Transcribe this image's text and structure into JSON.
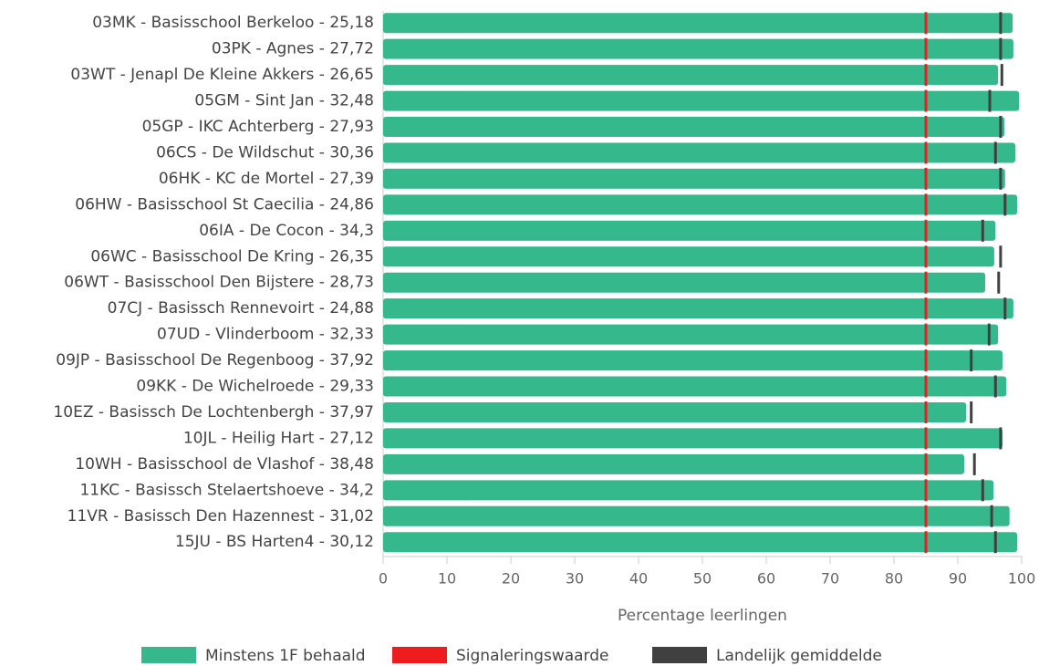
{
  "chart_data": {
    "type": "bar",
    "orientation": "horizontal",
    "x_label": "Percentage leerlingen",
    "categories": [
      "03MK - Basisschool Berkeloo - 25,18",
      "03PK - Agnes - 27,72",
      "03WT - Jenapl De Kleine Akkers - 26,65",
      "05GM - Sint Jan - 32,48",
      "05GP - IKC Achterberg - 27,93",
      "06CS - De Wildschut - 30,36",
      "06HK - KC de Mortel - 27,39",
      "06HW - Basisschool St Caecilia - 24,86",
      "06IA - De Cocon - 34,3",
      "06WC - Basisschool De Kring - 26,35",
      "06WT - Basisschool Den Bijstere - 28,73",
      "07CJ - Basissch Rennevoirt - 24,88",
      "07UD - Vlinderboom - 32,33",
      "09JP - Basisschool De Regenboog - 37,92",
      "09KK - De Wichelroede - 29,33",
      "10EZ - Basissch De Lochtenbergh - 37,97",
      "10JL - Heilig Hart - 27,12",
      "10WH - Basisschool de Vlashof - 38,48",
      "11KC - Basissch Stelaertshoeve - 34,2",
      "11VR - Basissch Den Hazennest - 31,02",
      "15JU - BS Harten4 - 30,12"
    ],
    "series": [
      {
        "name": "Minstens 1F behaald",
        "color": "#35b88c",
        "mark": "bar",
        "values": [
          98.6,
          98.7,
          96.3,
          99.6,
          97.3,
          99.0,
          97.4,
          99.3,
          95.9,
          95.7,
          94.3,
          98.7,
          96.3,
          97.0,
          97.6,
          91.3,
          97.0,
          91.0,
          95.6,
          98.1,
          99.3
        ]
      },
      {
        "name": "Signaleringswaarde",
        "color": "#ee1c1c",
        "mark": "line",
        "values": [
          85,
          85,
          85,
          85,
          85,
          85,
          85,
          85,
          85,
          85,
          85,
          85,
          85,
          85,
          85,
          85,
          85,
          85,
          85,
          85,
          85
        ]
      },
      {
        "name": "Landelijk gemiddelde",
        "color": "#404040",
        "mark": "line",
        "values": [
          96.7,
          96.7,
          96.9,
          95.0,
          96.7,
          95.9,
          96.7,
          97.4,
          93.9,
          96.7,
          96.4,
          97.4,
          94.9,
          92.1,
          95.9,
          92.1,
          96.7,
          92.6,
          93.9,
          95.3,
          95.9
        ]
      }
    ],
    "xlim": [
      0,
      100
    ],
    "xticks": [
      0,
      10,
      20,
      30,
      40,
      50,
      60,
      70,
      80,
      90,
      100
    ],
    "legend": "bottom"
  }
}
